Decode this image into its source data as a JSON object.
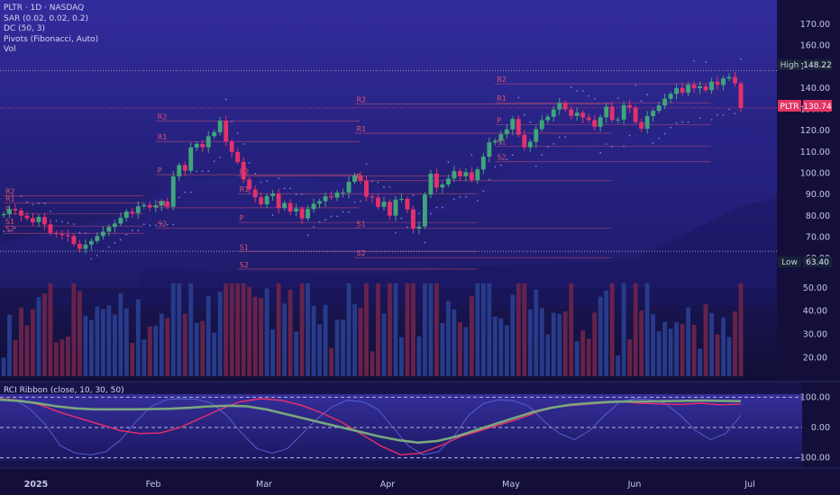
{
  "legend": {
    "symbol": "PLTR · 1D · NASDAQ",
    "sar": "SAR (0.02, 0.02, 0.2)",
    "dc": "DC (50, 3)",
    "pivots": "Pivots (Fibonacci, Auto)",
    "vol": "Vol"
  },
  "rci_title": "RCI Ribbon (close, 10, 30, 50)",
  "tags": {
    "high_label": "High",
    "high_value": "148.22",
    "last_label": "PLTR",
    "last_value": "130.74",
    "low_label": "Low",
    "low_value": "63.40"
  },
  "colors": {
    "background": "#130f3a",
    "up": "#3fa57a",
    "down": "#e5306c",
    "pivot": "#ff5a6e",
    "sar": "#6f7fd8",
    "volume_up": "#273b8a",
    "volume_down": "#66234a",
    "rci_short": "#5765d6",
    "rci_mid": "#ea2f6a",
    "rci_long": "#79a77e"
  },
  "chart_data": [
    {
      "type": "line",
      "name_label": "PLTR",
      "y_ticks": [
        "170.00",
        "160.00",
        "150.00",
        "140.00",
        "130.00",
        "120.00",
        "110.00",
        "100.00",
        "90.00",
        "80.00",
        "70.00",
        "60.00"
      ],
      "x_ticks": [
        "2025",
        "Feb",
        "Mar",
        "Apr",
        "May",
        "Jun",
        "Jul"
      ],
      "ylim": [
        55,
        175
      ],
      "high": 148.22,
      "low": 63.4,
      "last": 130.74,
      "close": [
        80.8,
        83.2,
        82.5,
        80.1,
        78.9,
        77.0,
        79.5,
        76.0,
        72.0,
        71.5,
        71.0,
        70.5,
        66.8,
        64.5,
        66.5,
        68.2,
        70.5,
        72.6,
        74.8,
        76.4,
        79.1,
        82.0,
        81.3,
        84.5,
        85.1,
        83.9,
        85.0,
        86.7,
        84.3,
        98.5,
        103.8,
        101.2,
        112.1,
        113.8,
        112.2,
        117.4,
        119.3,
        124.7,
        115.0,
        110.0,
        105.3,
        97.1,
        92.4,
        88.7,
        85.4,
        89.3,
        90.4,
        83.7,
        86.0,
        82.0,
        83.4,
        78.8,
        83.2,
        85.7,
        86.9,
        89.2,
        88.6,
        90.9,
        90.9,
        96.0,
        99.0,
        96.5,
        89.0,
        88.6,
        84.2,
        86.6,
        80.1,
        87.6,
        88.0,
        83.0,
        74.0,
        75.0,
        90.0,
        99.8,
        93.3,
        94.7,
        97.5,
        101.0,
        98.7,
        100.5,
        96.8,
        101.8,
        107.8,
        114.5,
        115.2,
        118.3,
        120.6,
        125.5,
        118.0,
        112.2,
        114.8,
        120.7,
        124.9,
        126.5,
        129.9,
        133.0,
        130.0,
        126.9,
        128.4,
        126.2,
        125.0,
        121.8,
        126.3,
        131.3,
        125.0,
        125.2,
        132.0,
        130.8,
        124.0,
        120.9,
        126.8,
        129.3,
        131.8,
        135.0,
        137.3,
        140.0,
        137.8,
        141.5,
        139.9,
        140.8,
        139.0,
        143.0,
        141.5,
        144.5,
        145.2,
        142.2,
        130.7
      ],
      "pivots": [
        {
          "label": "R2",
          "value": 89.5
        },
        {
          "label": "R1",
          "value": 86.1
        },
        {
          "label": "P",
          "value": 80.9
        },
        {
          "label": "S1",
          "value": 75.2
        },
        {
          "label": "S2",
          "value": 71.8
        },
        {
          "label": "R2",
          "value": 124.5
        },
        {
          "label": "R1",
          "value": 114.9
        },
        {
          "label": "P",
          "value": 99.3
        },
        {
          "label": "S1",
          "value": 83.8
        },
        {
          "label": "S2",
          "value": 74.2
        },
        {
          "label": "R2",
          "value": 98.8
        },
        {
          "label": "R1",
          "value": 90.4
        },
        {
          "label": "P",
          "value": 76.9
        },
        {
          "label": "S1",
          "value": 63.3
        },
        {
          "label": "S2",
          "value": 55.0
        },
        {
          "label": "R2",
          "value": 132.6
        },
        {
          "label": "R1",
          "value": 118.8
        },
        {
          "label": "P",
          "value": 96.5
        },
        {
          "label": "S1",
          "value": 74.2
        },
        {
          "label": "S2",
          "value": 60.4
        },
        {
          "label": "R2",
          "value": 142.0
        },
        {
          "label": "R1",
          "value": 133.1
        },
        {
          "label": "P",
          "value": 122.9
        },
        {
          "label": "S1",
          "value": 112.6
        },
        {
          "label": "S2",
          "value": 105.4
        }
      ]
    },
    {
      "type": "bar",
      "name_label": "Vol",
      "y_ticks": [
        "50.00",
        "40.00",
        "30.00",
        "20.00"
      ],
      "ylim": [
        12,
        55
      ]
    },
    {
      "type": "line",
      "name_label": "RCI Ribbon (close, 10, 30, 50)",
      "y_ticks": [
        "100.00",
        "0.00",
        "-100.00"
      ],
      "ylim": [
        -110,
        110
      ],
      "series": [
        {
          "name": "short",
          "values": [
            90,
            92,
            60,
            10,
            -60,
            -85,
            -90,
            -80,
            -40,
            20,
            70,
            92,
            95,
            93,
            80,
            40,
            -20,
            -70,
            -85,
            -70,
            -20,
            30,
            70,
            90,
            85,
            60,
            0,
            -60,
            -90,
            -80,
            -30,
            40,
            80,
            92,
            88,
            70,
            20,
            -20,
            -40,
            -10,
            40,
            85,
            95,
            92,
            80,
            40,
            -10,
            -40,
            -20,
            40
          ]
        },
        {
          "name": "mid",
          "values": [
            95,
            90,
            75,
            50,
            30,
            10,
            -10,
            -20,
            -18,
            0,
            30,
            60,
            85,
            95,
            90,
            75,
            50,
            20,
            -20,
            -60,
            -90,
            -85,
            -60,
            -30,
            -10,
            10,
            30,
            55,
            70,
            75,
            80,
            85,
            80,
            78,
            76,
            80,
            75,
            78
          ]
        },
        {
          "name": "long",
          "values": [
            92,
            88,
            80,
            70,
            63,
            60,
            60,
            60,
            61,
            62,
            65,
            70,
            72,
            70,
            60,
            45,
            30,
            15,
            0,
            -15,
            -30,
            -42,
            -50,
            -45,
            -30,
            -10,
            10,
            30,
            50,
            65,
            75,
            80,
            84,
            86,
            86,
            87,
            88,
            89,
            88,
            87
          ]
        }
      ]
    }
  ]
}
